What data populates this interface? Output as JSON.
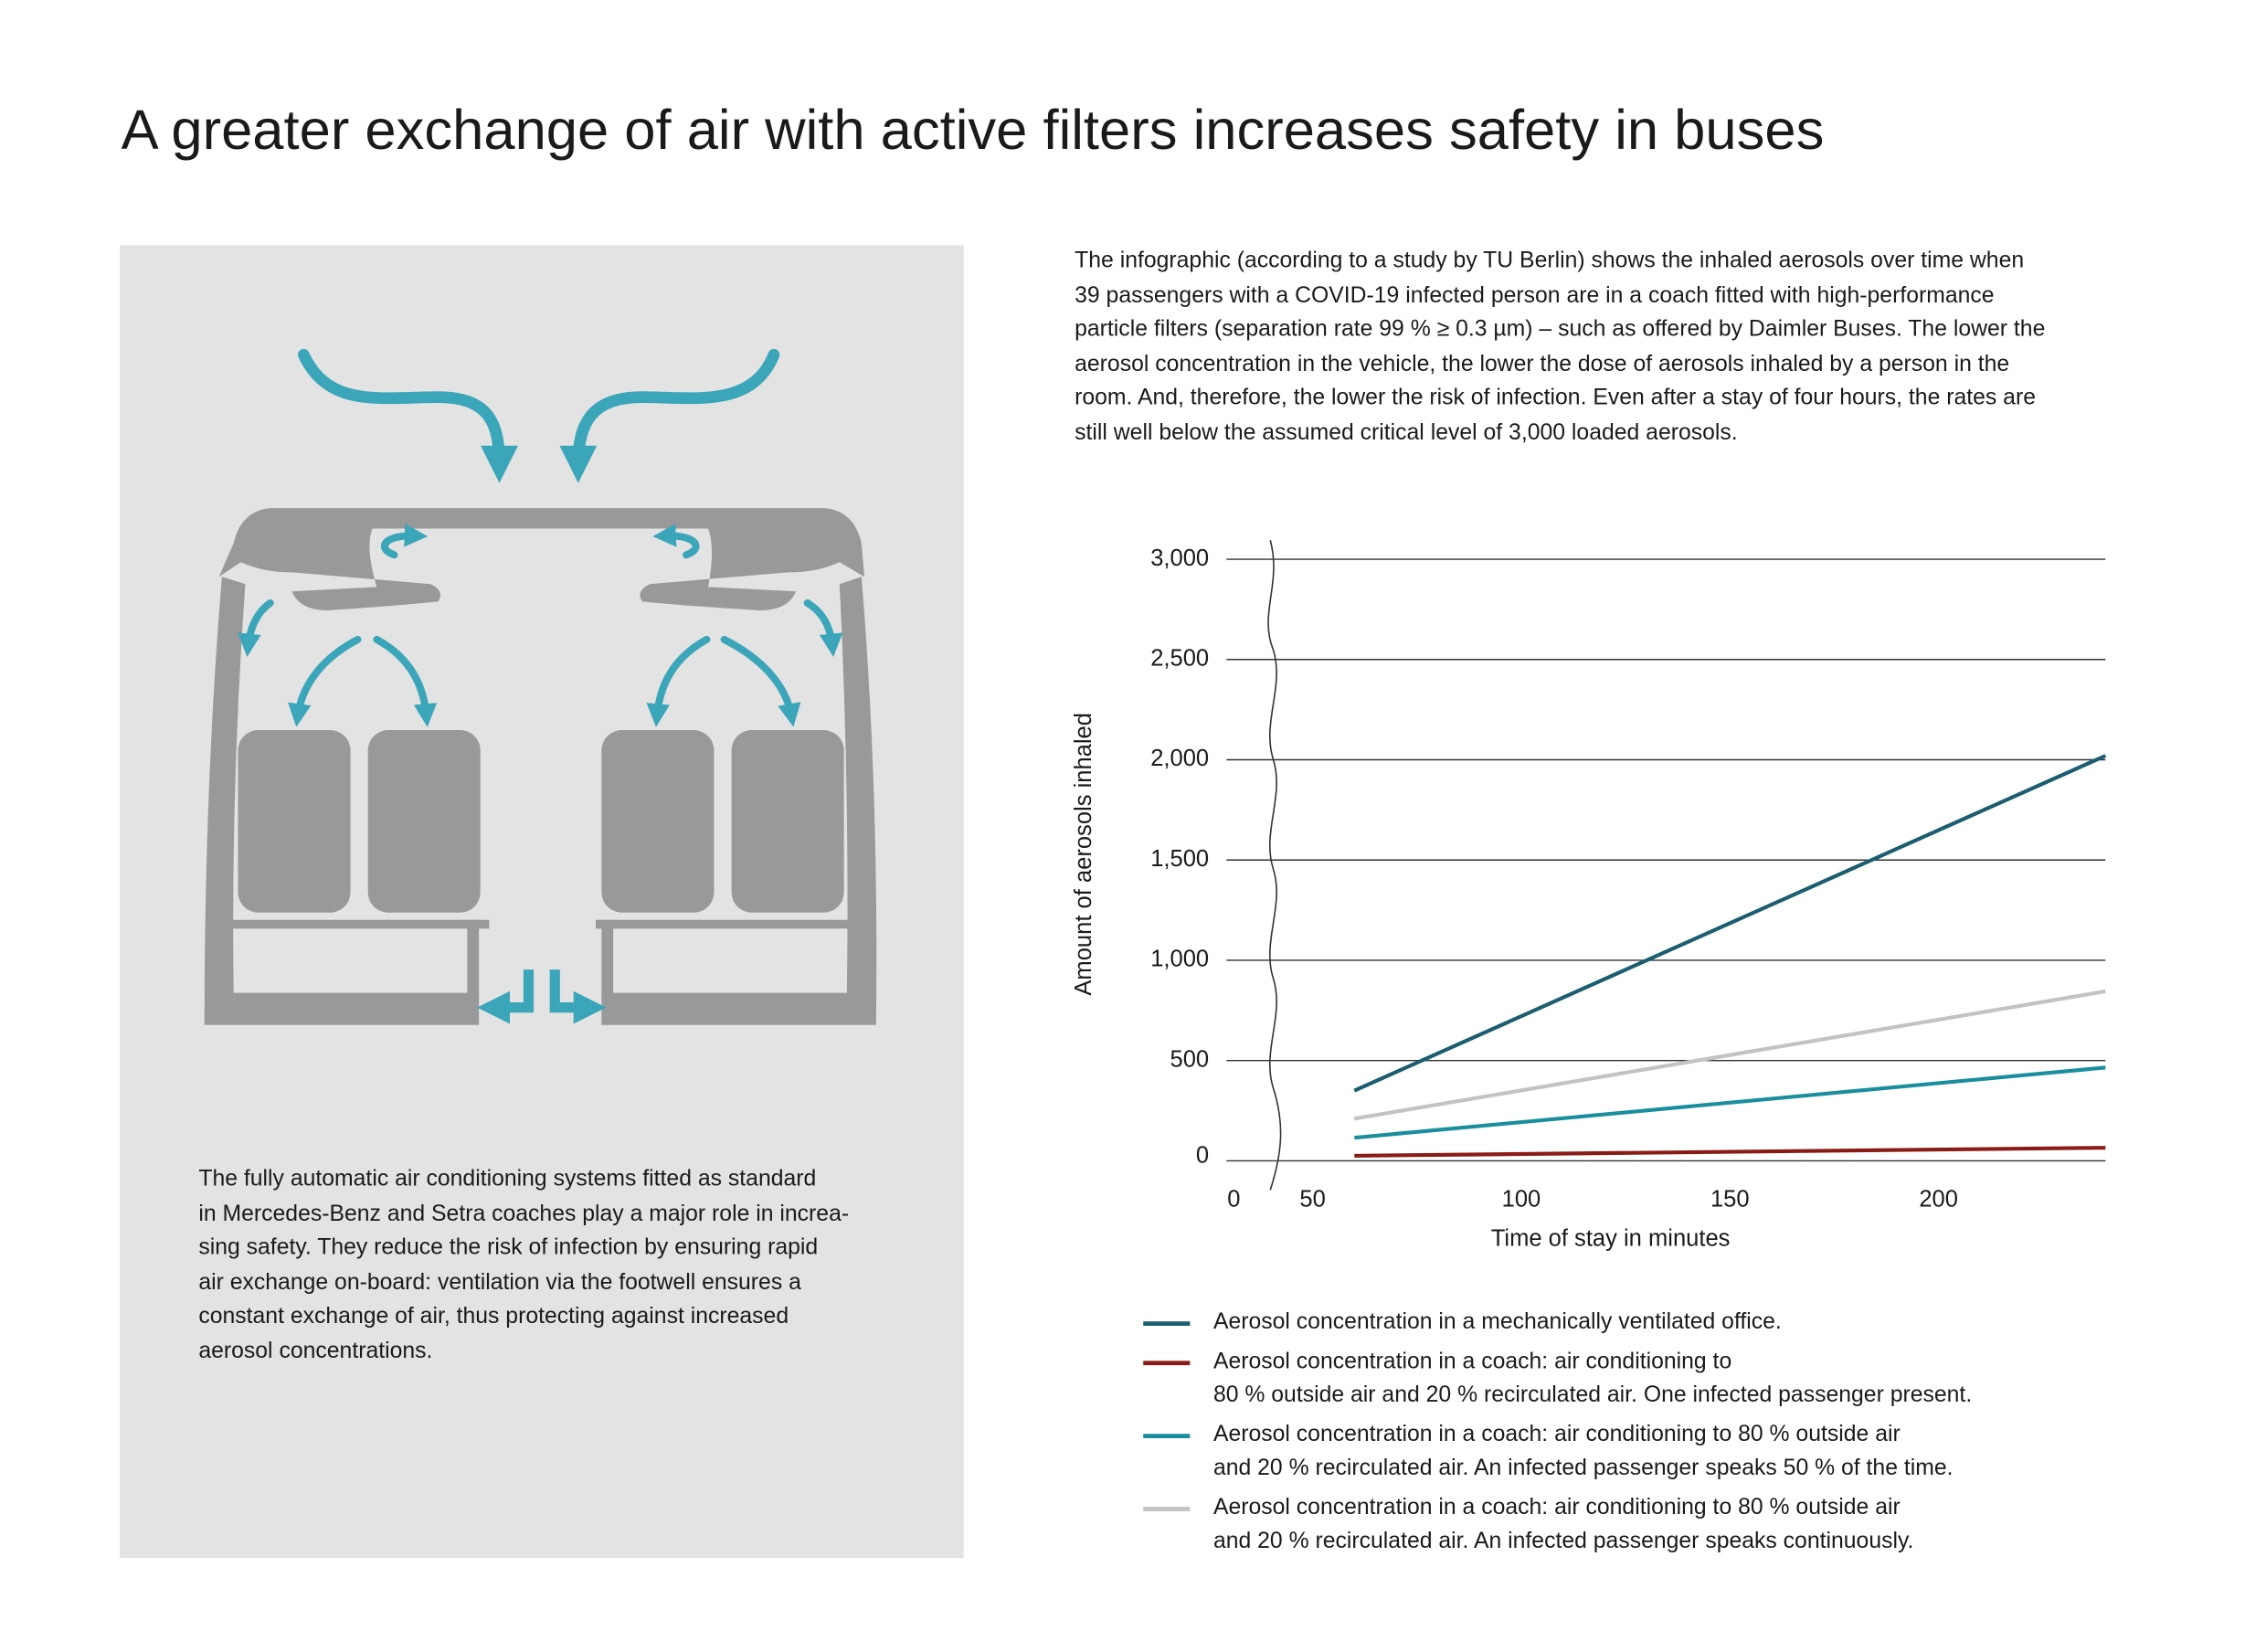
{
  "title": "A greater exchange of air with active filters increases safety in buses",
  "intro": [
    "The infographic (according to a study by TU Berlin) shows the inhaled aerosols over time when",
    "39 passengers with a COVID-19 infected person are in a coach fitted with high-performance",
    "particle filters (separation rate 99 % ≥ 0.3 µm) – such as offered by Daimler Buses. The lower the",
    "aerosol concentration in the vehicle, the lower the dose of aerosols inhaled by a person in the",
    "room. And, therefore, the lower the risk of infection. Even after a stay of four hours, the rates are",
    "still well below the assumed critical level of 3,000 loaded aerosols."
  ],
  "description": [
    "The fully automatic air conditioning systems fitted as standard",
    "in Mercedes-Benz and Setra coaches play a major role in increa-",
    "sing safety. They reduce the risk of infection by ensuring rapid",
    "air exchange on-board: ventilation via the footwell ensures a",
    "constant exchange of air, thus protecting against increased",
    "aerosol concentrations."
  ],
  "chart_data": {
    "type": "line",
    "x_label": "Time of stay in minutes",
    "y_label": "Amount of aerosols inhaled",
    "x": [
      60,
      240
    ],
    "xlim": [
      0,
      240
    ],
    "x_break": [
      0,
      50
    ],
    "xticks": [
      0,
      50,
      100,
      150,
      200
    ],
    "ylim": [
      0,
      3000
    ],
    "yticks": [
      0,
      500,
      {
        "value": 1000,
        "label": "1,000"
      },
      {
        "value": 1500,
        "label": "1,500"
      },
      {
        "value": 2000,
        "label": "2,000"
      },
      {
        "value": 2500,
        "label": "2,500"
      },
      {
        "value": 3000,
        "label": "3,000"
      }
    ],
    "grid": true,
    "series": [
      {
        "name": "Aerosol concentration in a mechanically ventilated office.",
        "color": "#1b5e70",
        "values": [
          350,
          2020
        ]
      },
      {
        "name": "Aerosol concentration in a coach: air conditioning to\n80 % outside air and 20 % recirculated air. One infected passenger present.",
        "color": "#8a1c17",
        "values": [
          25,
          65
        ]
      },
      {
        "name": "Aerosol concentration in a coach: air conditioning to 80 % outside air\nand 20 % recirculated air. An infected passenger speaks 50 % of the time.",
        "color": "#1a8e9e",
        "values": [
          115,
          465
        ]
      },
      {
        "name": "Aerosol concentration in a coach: air conditioning to 80 % outside air\nand 20 % recirculated air. An infected passenger speaks continuously.",
        "color": "#c3c3c3",
        "values": [
          210,
          845
        ]
      }
    ]
  }
}
